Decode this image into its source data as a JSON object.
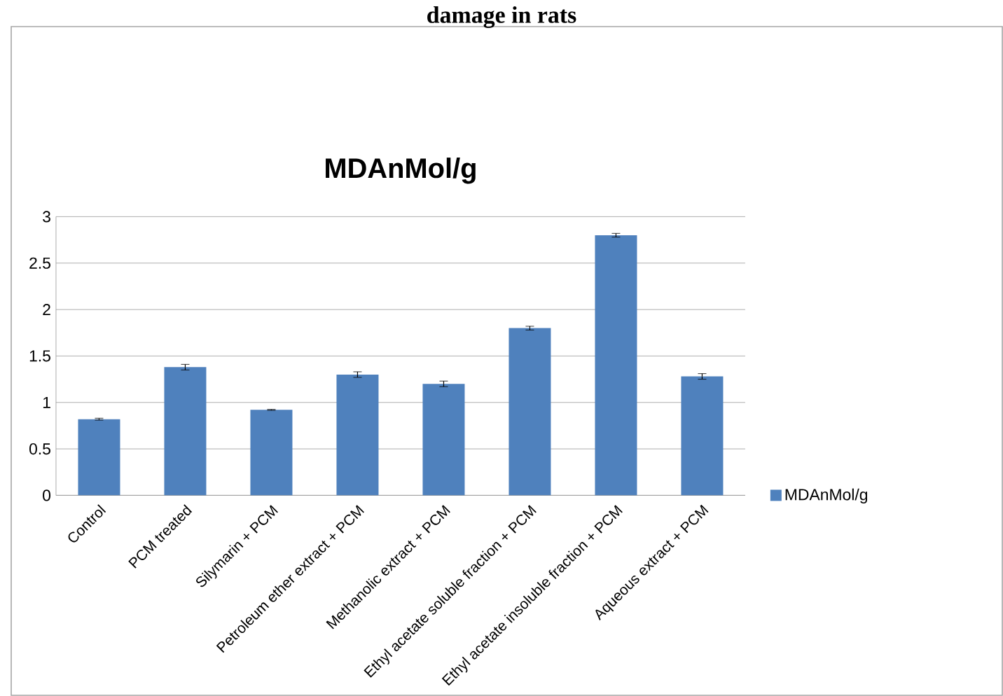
{
  "chart_data": {
    "type": "bar",
    "title": "MDAnMol/g",
    "annotations": [
      "damage in rats"
    ],
    "categories": [
      "Control",
      "PCM treated",
      "Silymarin + PCM",
      "Petroleum ether extract + PCM",
      "Methanolic extract + PCM",
      "Ethyl acetate soluble fraction + PCM",
      "Ethyl acetate insoluble fraction + PCM",
      "Aqueous extract + PCM"
    ],
    "series": [
      {
        "name": "MDAnMol/g",
        "color": "#4f81bd",
        "values": [
          0.82,
          1.38,
          0.92,
          1.3,
          1.2,
          1.8,
          2.8,
          1.28
        ],
        "errors": [
          0.01,
          0.03,
          0.005,
          0.03,
          0.03,
          0.02,
          0.02,
          0.03
        ]
      }
    ],
    "ylim": [
      0,
      3
    ],
    "yticks": [
      0,
      0.5,
      1,
      1.5,
      2,
      2.5,
      3
    ],
    "grid": "y",
    "legend": "right"
  }
}
